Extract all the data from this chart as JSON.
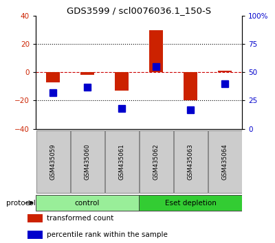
{
  "title": "GDS3599 / scl0076036.1_150-S",
  "samples": [
    "GSM435059",
    "GSM435060",
    "GSM435061",
    "GSM435062",
    "GSM435063",
    "GSM435064"
  ],
  "red_values": [
    -7,
    -2,
    -13,
    30,
    -20,
    1
  ],
  "blue_values_pct": [
    32,
    37,
    18,
    55,
    17,
    40
  ],
  "ylim_left": [
    -40,
    40
  ],
  "ylim_right": [
    0,
    100
  ],
  "left_ticks": [
    -40,
    -20,
    0,
    20,
    40
  ],
  "right_ticks": [
    0,
    25,
    50,
    75,
    100
  ],
  "right_tick_labels": [
    "0",
    "25",
    "50",
    "75",
    "100%"
  ],
  "dotted_lines": [
    -20,
    20
  ],
  "red_color": "#cc2200",
  "blue_color": "#0000cc",
  "dashed_zero_color": "#cc0000",
  "protocol_groups": [
    {
      "label": "control",
      "start": 0,
      "end": 3,
      "color": "#99ee99"
    },
    {
      "label": "Eset depletion",
      "start": 3,
      "end": 6,
      "color": "#33cc33"
    }
  ],
  "protocol_label": "protocol",
  "legend_items": [
    {
      "color": "#cc2200",
      "label": "transformed count"
    },
    {
      "color": "#0000cc",
      "label": "percentile rank within the sample"
    }
  ],
  "background_color": "#ffffff",
  "plot_bg": "#ffffff",
  "tick_label_color_left": "#cc2200",
  "tick_label_color_right": "#0000cc",
  "bar_width": 0.4,
  "blue_marker_size": 7,
  "sample_box_color": "#cccccc",
  "sample_box_edge": "#888888"
}
